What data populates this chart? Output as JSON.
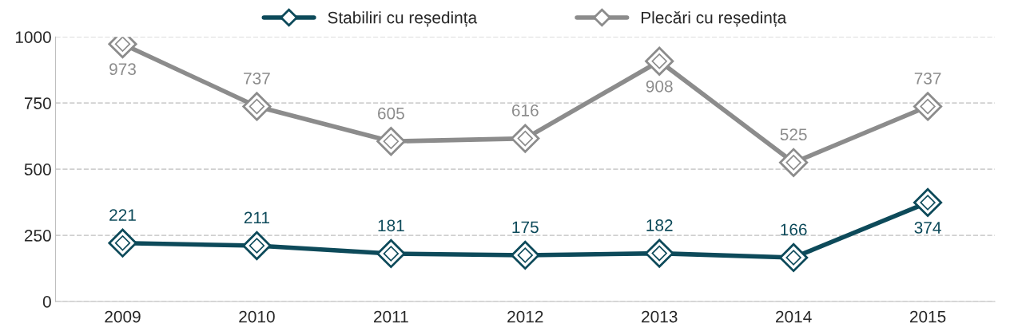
{
  "chart_data": {
    "type": "line",
    "categories": [
      "2009",
      "2010",
      "2011",
      "2012",
      "2013",
      "2014",
      "2015"
    ],
    "series": [
      {
        "name": "Stabiliri cu reședința",
        "color": "#0d4a5a",
        "values": [
          221,
          211,
          181,
          175,
          182,
          166,
          374
        ]
      },
      {
        "name": "Plecări cu reședința",
        "color": "#8c8c8c",
        "values": [
          973,
          737,
          605,
          616,
          908,
          525,
          737
        ]
      }
    ],
    "ylim": [
      0,
      1000
    ],
    "yticks": [
      0,
      250,
      500,
      750,
      1000
    ],
    "grid": "y",
    "legend": "top",
    "marker": "diamond",
    "line_style": "solid",
    "data_labels": true
  }
}
